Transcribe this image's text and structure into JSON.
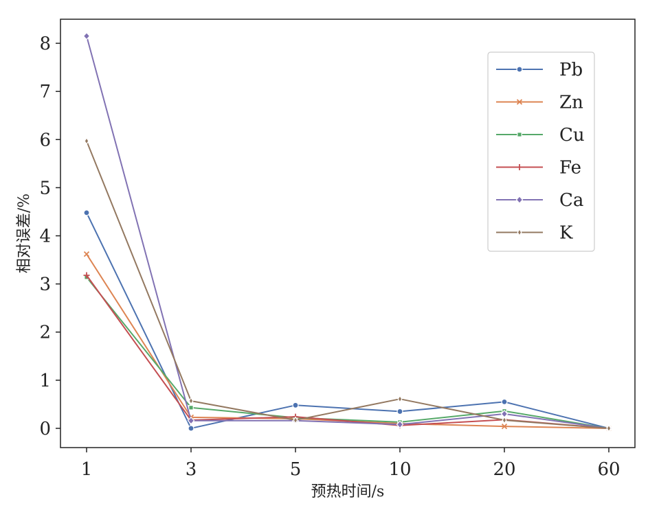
{
  "chart_data": {
    "type": "line",
    "x": [
      "1",
      "3",
      "5",
      "10",
      "20",
      "60"
    ],
    "xlabel": "预热时间/s",
    "ylabel": "相对误差/%",
    "ylim": [
      -0.4,
      8.5
    ],
    "yticks": [
      0,
      1,
      2,
      3,
      4,
      5,
      6,
      7,
      8
    ],
    "grid": false,
    "legend_position": "top-right",
    "series": [
      {
        "name": "Pb",
        "color": "#4C72B0",
        "marker": "circle",
        "values": [
          4.48,
          0.0,
          0.48,
          0.35,
          0.55,
          0.0
        ]
      },
      {
        "name": "Zn",
        "color": "#DD8452",
        "marker": "x",
        "values": [
          3.62,
          0.23,
          0.2,
          0.1,
          0.04,
          0.0
        ]
      },
      {
        "name": "Cu",
        "color": "#55A868",
        "marker": "square",
        "values": [
          3.14,
          0.43,
          0.22,
          0.13,
          0.36,
          0.0
        ]
      },
      {
        "name": "Fe",
        "color": "#C44E52",
        "marker": "plus",
        "values": [
          3.18,
          0.17,
          0.24,
          0.06,
          0.18,
          0.0
        ]
      },
      {
        "name": "Ca",
        "color": "#8172B3",
        "marker": "diamond",
        "values": [
          8.15,
          0.16,
          0.16,
          0.08,
          0.3,
          0.0
        ]
      },
      {
        "name": "K",
        "color": "#937860",
        "marker": "thin-diamond",
        "values": [
          5.97,
          0.57,
          0.17,
          0.61,
          0.17,
          0.0
        ]
      }
    ]
  }
}
